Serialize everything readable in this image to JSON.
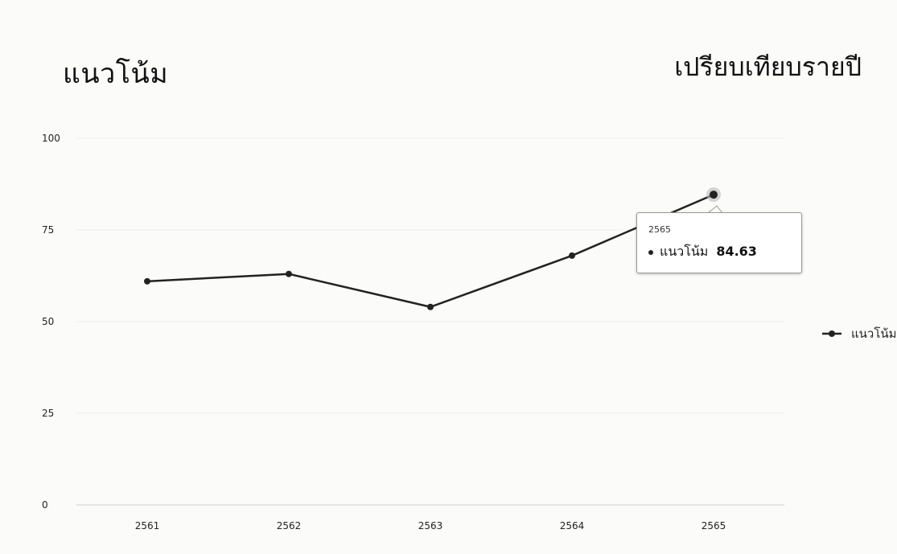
{
  "header": {
    "title": "แนวโน้ม",
    "subtitle": "เปรียบเทียบรายปี"
  },
  "chart_data": {
    "type": "line",
    "title": "แนวโน้ม",
    "subtitle": "เปรียบเทียบรายปี",
    "xlabel": "",
    "ylabel": "",
    "categories": [
      "2561",
      "2562",
      "2563",
      "2564",
      "2565"
    ],
    "series": [
      {
        "name": "แนวโน้ม",
        "values": [
          61,
          63,
          54,
          68,
          84.63
        ],
        "color": "#222222"
      }
    ],
    "ylim": [
      0,
      100
    ],
    "yticks": [
      0,
      25,
      50,
      75,
      100
    ],
    "grid": true,
    "legend": "right",
    "tooltip": {
      "x": "2565",
      "series": "แนวโน้ม",
      "value": "84.63"
    }
  }
}
